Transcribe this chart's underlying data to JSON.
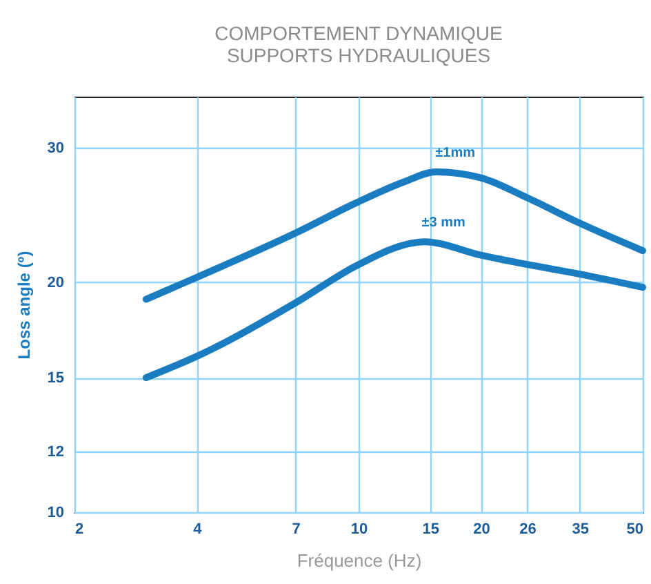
{
  "chart_data": {
    "type": "line",
    "title": "COMPORTEMENT DYNAMIQUE",
    "subtitle": "SUPPORTS HYDRAULIQUES",
    "xlabel": "Fréquence (Hz)",
    "ylabel": "Loss angle (º)",
    "log": "xy",
    "xlim": [
      2,
      50
    ],
    "xticks": [
      2,
      4,
      7,
      10,
      15,
      20,
      26,
      35,
      50
    ],
    "ylim": [
      10,
      35
    ],
    "yticks": [
      10,
      12,
      15,
      20,
      30
    ],
    "grid": true,
    "legend": false,
    "line_style": "solid",
    "series": [
      {
        "name": "±1mm",
        "color": "#1a7cc1",
        "x": [
          3,
          4,
          7,
          10,
          13,
          15.5,
          20,
          26,
          35,
          50
        ],
        "values": [
          19,
          20.3,
          23.2,
          25.5,
          27.1,
          27.9,
          27.4,
          25.8,
          23.9,
          22
        ]
      },
      {
        "name": "±3 mm",
        "color": "#1a7cc1",
        "x": [
          3,
          4,
          7,
          10,
          13.5,
          14.5,
          20,
          26,
          35,
          50
        ],
        "values": [
          15,
          16,
          18.8,
          21.1,
          22.5,
          22.6,
          21.7,
          21.1,
          20.5,
          19.7
        ]
      }
    ]
  }
}
